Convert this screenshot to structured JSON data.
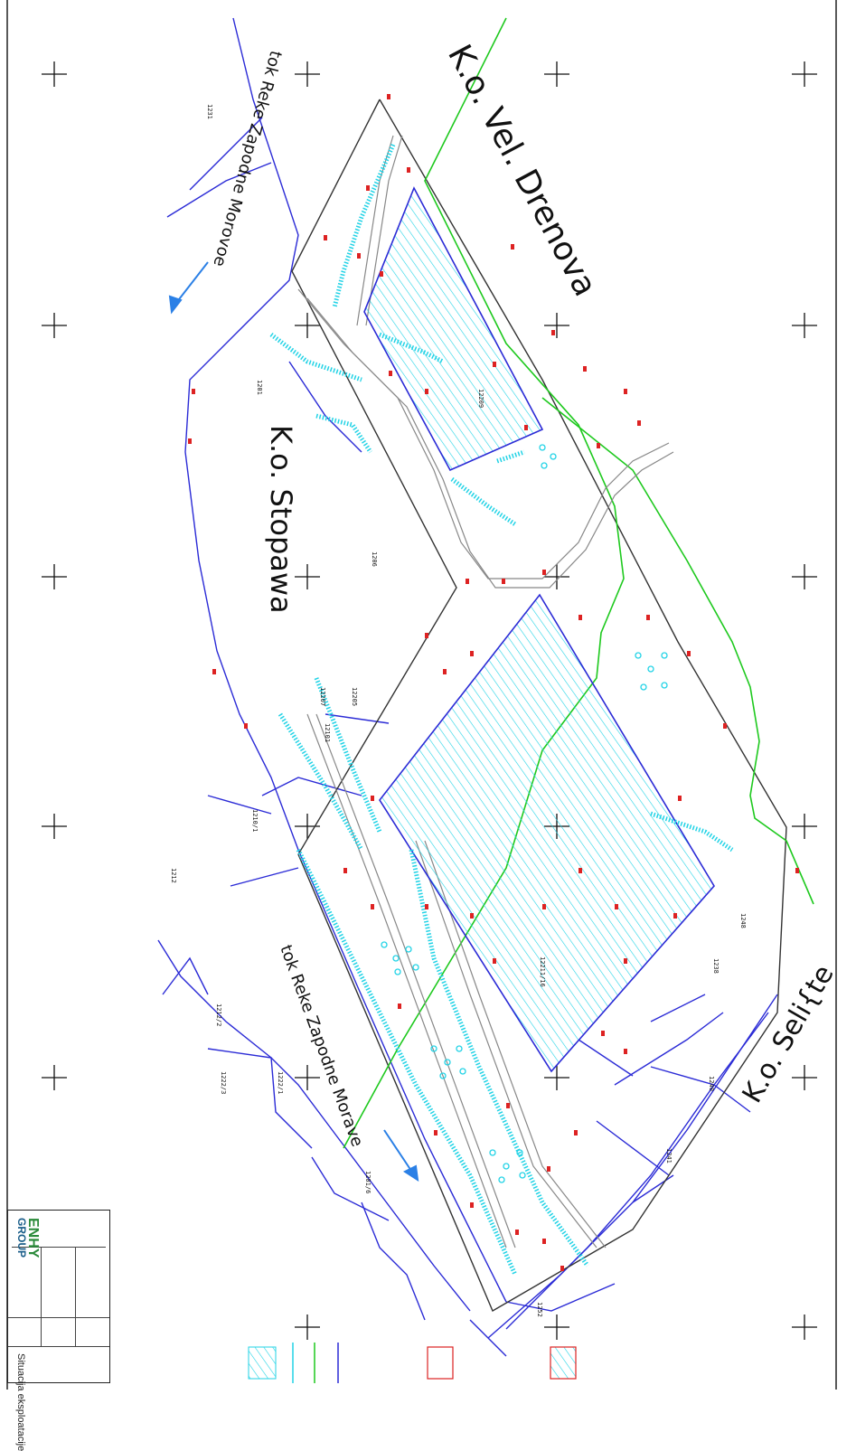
{
  "labels": {
    "ko_vel_drenova": "K.o. Vel. Drenova",
    "ko_stopanja": "K.o. Stopawa",
    "ko_selishte": "K.o. Seli{te",
    "river_top": "tok Reke Zapodne Morovoe",
    "river_bottom": "tok Reke Zapodne Morave"
  },
  "parcels": [
    "12211/16",
    "1201",
    "1206",
    "12209",
    "1210/1",
    "1212",
    "1212/2",
    "12207",
    "12205",
    "12101",
    "1201/6",
    "1222/1",
    "1222/3",
    "1231",
    "1238",
    "1240",
    "1241",
    "1248",
    "1252"
  ],
  "title_block": {
    "company": "ENHY",
    "group": "GROUP",
    "sheet_title": "Situacija eksploatacije"
  },
  "colors": {
    "blue": "#2b2bd6",
    "cyan": "#22d3e6",
    "green": "#1ec91e",
    "grey": "#888888",
    "red": "#d22222"
  }
}
